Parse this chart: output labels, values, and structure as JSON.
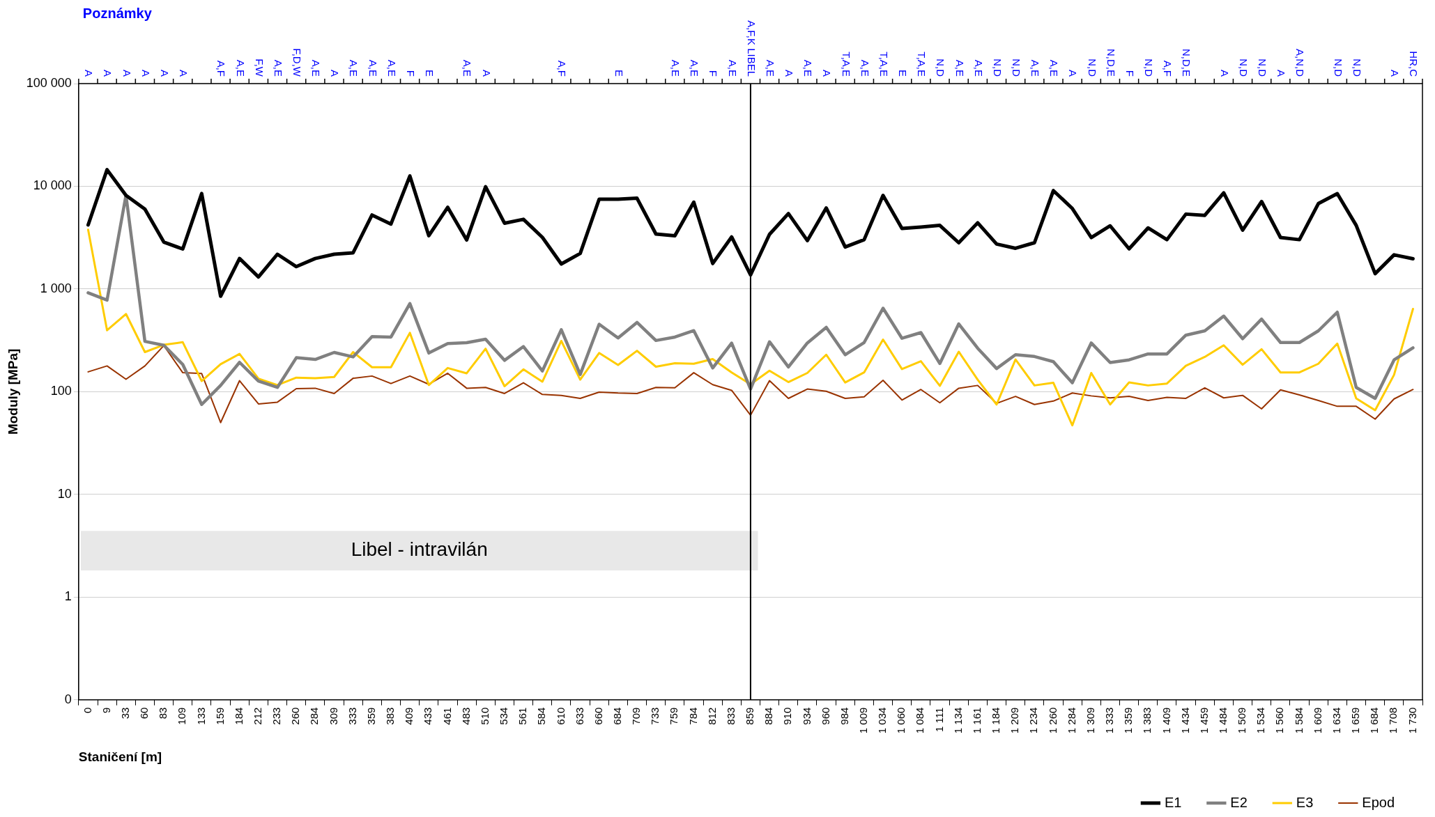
{
  "chart_data": {
    "type": "line",
    "title": "Poznámky",
    "xlabel": "Staničení [m]",
    "ylabel": "Moduly [MPa]",
    "categories": [
      "0",
      "9",
      "33",
      "60",
      "83",
      "109",
      "133",
      "159",
      "184",
      "212",
      "233",
      "260",
      "284",
      "309",
      "333",
      "359",
      "383",
      "409",
      "433",
      "461",
      "483",
      "510",
      "534",
      "561",
      "584",
      "610",
      "633",
      "660",
      "684",
      "709",
      "733",
      "759",
      "784",
      "812",
      "833",
      "859",
      "884",
      "910",
      "934",
      "960",
      "984",
      "1 009",
      "1 034",
      "1 060",
      "1 084",
      "1 111",
      "1 134",
      "1 161",
      "1 184",
      "1 209",
      "1 234",
      "1 260",
      "1 284",
      "1 309",
      "1 333",
      "1 359",
      "1 383",
      "1 409",
      "1 434",
      "1 459",
      "1 484",
      "1 509",
      "1 534",
      "1 560",
      "1 584",
      "1 609",
      "1 634",
      "1 659",
      "1 684",
      "1 708",
      "1 730"
    ],
    "series": [
      {
        "name": "E1",
        "color": "#000000",
        "values": [
          4200,
          14500,
          8160,
          6000,
          2860,
          2450,
          8490,
          850,
          1980,
          1310,
          2180,
          1650,
          1980,
          2180,
          2250,
          5250,
          4290,
          12600,
          3300,
          6240,
          3000,
          9900,
          4370,
          4770,
          3180,
          1750,
          2220,
          7490,
          7490,
          7650,
          3430,
          3300,
          7000,
          1770,
          3210,
          1370,
          3400,
          5420,
          2960,
          6150,
          2560,
          3020,
          8150,
          3890,
          4010,
          4160,
          2820,
          4410,
          2740,
          2490,
          2820,
          9070,
          6080,
          3170,
          4120,
          2460,
          3930,
          3020,
          5360,
          5210,
          8640,
          3740,
          7110,
          3170,
          3020,
          6780,
          8480,
          4160,
          1410,
          2150,
          1970
        ]
      },
      {
        "name": "E2",
        "color": "#808080",
        "values": [
          917,
          778,
          8160,
          309,
          283,
          184,
          75,
          115,
          193,
          127,
          110,
          214,
          206,
          241,
          218,
          344,
          340,
          721,
          238,
          294,
          300,
          324,
          202,
          275,
          159,
          401,
          147,
          454,
          333,
          472,
          315,
          340,
          393,
          170,
          297,
          106,
          306,
          174,
          298,
          423,
          229,
          301,
          649,
          331,
          376,
          188,
          457,
          265,
          168,
          229,
          220,
          196,
          122,
          298,
          192,
          204,
          233,
          233,
          355,
          391,
          545,
          328,
          509,
          301,
          301,
          391,
          594,
          110,
          86,
          204,
          267
        ]
      },
      {
        "name": "E3",
        "color": "#ffcc00",
        "values": [
          3780,
          396,
          571,
          243,
          286,
          303,
          127,
          185,
          233,
          134,
          116,
          137,
          135,
          139,
          243,
          173,
          173,
          374,
          116,
          170,
          151,
          262,
          113,
          165,
          125,
          312,
          131,
          238,
          182,
          250,
          175,
          189,
          187,
          208,
          154,
          118,
          160,
          124,
          152,
          229,
          123,
          154,
          322,
          166,
          198,
          114,
          245,
          131,
          75,
          206,
          115,
          122,
          47,
          152,
          75,
          123,
          115,
          120,
          179,
          218,
          283,
          183,
          259,
          154,
          154,
          187,
          294,
          86,
          66,
          146,
          640
        ]
      },
      {
        "name": "Epod",
        "color": "#993300",
        "values": [
          156,
          178,
          132,
          178,
          281,
          153,
          150,
          50,
          128,
          76,
          79,
          107,
          108,
          96,
          135,
          142,
          120,
          142,
          118,
          151,
          108,
          110,
          96,
          122,
          94,
          92,
          86,
          99,
          97,
          96,
          110,
          109,
          153,
          117,
          103,
          59,
          128,
          86,
          106,
          101,
          86,
          89,
          129,
          83,
          105,
          78,
          108,
          115,
          77,
          90,
          75,
          81,
          97,
          91,
          87,
          90,
          82,
          88,
          86,
          109,
          87,
          92,
          68,
          104,
          93,
          82,
          72,
          72,
          54,
          85,
          105
        ]
      }
    ],
    "ylim": [
      0.1,
      100000
    ],
    "yticks": [
      {
        "value": 0.1,
        "label": "0"
      },
      1,
      10,
      100,
      {
        "value": 1000,
        "label": "1 000"
      },
      {
        "value": 10000,
        "label": "10 000"
      },
      {
        "value": 100000,
        "label": "100 000"
      }
    ],
    "log": true,
    "grid": "y",
    "legend": "bottom right",
    "marker": "none",
    "line_style": "solid",
    "ref_lines": [
      {
        "axis": "x",
        "value": "859",
        "color": "#000000"
      }
    ],
    "bands": [
      {
        "axis": "x",
        "from": "0",
        "to": "859",
        "label": "Libel - intravilán",
        "color": "#e8e8e8"
      }
    ],
    "annotations": [
      "A",
      "A",
      "A",
      "A",
      "A",
      "A",
      null,
      "A,F",
      "A,E",
      "F,W",
      "A,E",
      "F,D,W",
      "A,E",
      "A",
      "A,E",
      "A,E",
      "A,E",
      "F",
      "E",
      null,
      "A,E",
      "A",
      null,
      null,
      null,
      "A,F",
      null,
      null,
      "E",
      null,
      null,
      "A,E",
      "A,E",
      "F",
      "A,E",
      "A,F,K LIBEL",
      "A,E",
      "A",
      "A,E",
      "A",
      "T,A,E",
      "A,E",
      "T,A,E",
      "E",
      "T,A,E",
      "N,D",
      "A,E",
      "A,E",
      "N,D",
      "N,D",
      "A,E",
      "A,E",
      "A",
      "N,D",
      "N,D,E",
      "F",
      "N,D",
      "A,F",
      "N,D,E",
      null,
      "A",
      "N,D",
      "N,D",
      "A",
      "A,N,D",
      null,
      "N,D",
      "N,D",
      null,
      "A",
      "HR,C"
    ]
  }
}
